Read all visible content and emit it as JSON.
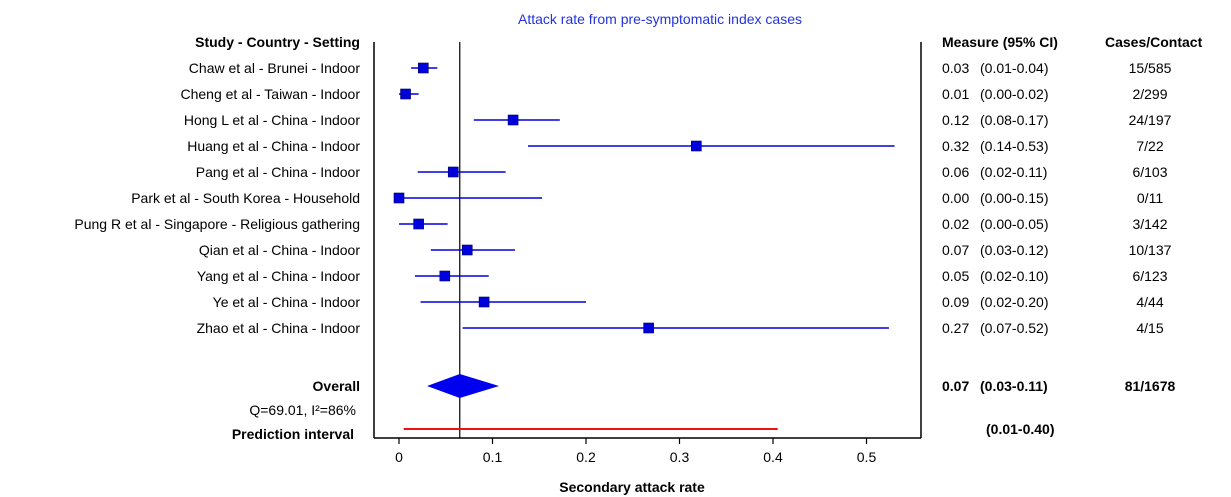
{
  "chart_data": {
    "type": "forest",
    "title": "Attack rate from pre-symptomatic index cases",
    "xlabel": "Secondary attack rate",
    "xlim": [
      0,
      0.55
    ],
    "xticks": [
      {
        "value": 0,
        "label": "0"
      },
      {
        "value": 0.1,
        "label": "0.1"
      },
      {
        "value": 0.2,
        "label": "0.2"
      },
      {
        "value": 0.3,
        "label": "0.3"
      },
      {
        "value": 0.4,
        "label": "0.4"
      },
      {
        "value": 0.5,
        "label": "0.5"
      }
    ],
    "reference_line": 0.065,
    "headers": {
      "study": "Study - Country - Setting",
      "measure": "Measure (95% CI)",
      "cases": "Cases/Contact"
    },
    "studies": [
      {
        "label": "Chaw et al - Brunei - Indoor",
        "est": 0.026,
        "lo": 0.013,
        "hi": 0.041,
        "measure": "0.03",
        "ci": "(0.01-0.04)",
        "cases": "15/585"
      },
      {
        "label": "Cheng et al - Taiwan - Indoor",
        "est": 0.007,
        "lo": 0.0,
        "hi": 0.021,
        "measure": "0.01",
        "ci": "(0.00-0.02)",
        "cases": "2/299"
      },
      {
        "label": "Hong L et al - China - Indoor",
        "est": 0.122,
        "lo": 0.08,
        "hi": 0.172,
        "measure": "0.12",
        "ci": "(0.08-0.17)",
        "cases": "24/197"
      },
      {
        "label": "Huang et al - China - Indoor",
        "est": 0.318,
        "lo": 0.138,
        "hi": 0.53,
        "measure": "0.32",
        "ci": "(0.14-0.53)",
        "cases": "7/22"
      },
      {
        "label": "Pang et al - China - Indoor",
        "est": 0.058,
        "lo": 0.02,
        "hi": 0.114,
        "measure": "0.06",
        "ci": "(0.02-0.11)",
        "cases": "6/103"
      },
      {
        "label": "Park et al - South Korea - Household",
        "est": 0.0,
        "lo": 0.0,
        "hi": 0.153,
        "measure": "0.00",
        "ci": "(0.00-0.15)",
        "cases": "0/11"
      },
      {
        "label": "Pung R et al - Singapore - Religious gathering",
        "est": 0.021,
        "lo": 0.0,
        "hi": 0.052,
        "measure": "0.02",
        "ci": "(0.00-0.05)",
        "cases": "3/142"
      },
      {
        "label": "Qian et al - China - Indoor",
        "est": 0.073,
        "lo": 0.034,
        "hi": 0.124,
        "measure": "0.07",
        "ci": "(0.03-0.12)",
        "cases": "10/137"
      },
      {
        "label": "Yang et al - China - Indoor",
        "est": 0.049,
        "lo": 0.017,
        "hi": 0.096,
        "measure": "0.05",
        "ci": "(0.02-0.10)",
        "cases": "6/123"
      },
      {
        "label": "Ye et al - China - Indoor",
        "est": 0.091,
        "lo": 0.023,
        "hi": 0.2,
        "measure": "0.09",
        "ci": "(0.02-0.20)",
        "cases": "4/44"
      },
      {
        "label": "Zhao et al - China - Indoor",
        "est": 0.267,
        "lo": 0.068,
        "hi": 0.524,
        "measure": "0.27",
        "ci": "(0.07-0.52)",
        "cases": "4/15"
      }
    ],
    "overall": {
      "label": "Overall",
      "est": 0.065,
      "lo": 0.03,
      "hi": 0.107,
      "measure": "0.07",
      "ci": "(0.03-0.11)",
      "cases": "81/1678"
    },
    "heterogeneity": "Q=69.01, I²=86%",
    "prediction": {
      "label": "Prediction interval",
      "lo": 0.005,
      "hi": 0.405,
      "ci": "(0.01-0.40)"
    },
    "colors": {
      "study": "#0000dd",
      "overall": "#0000ee",
      "prediction": "#ee1111",
      "title": "#2233dd",
      "axis": "#000000"
    }
  }
}
